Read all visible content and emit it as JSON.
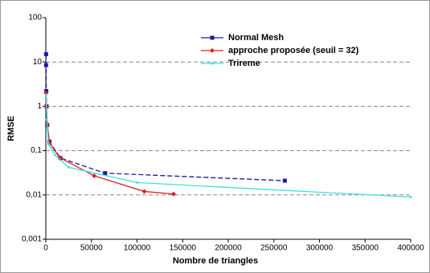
{
  "chart_data": {
    "type": "line",
    "xlabel": "Nombre de triangles",
    "ylabel": "RMSE",
    "xlim": [
      0,
      400000
    ],
    "xticks": [
      0,
      50000,
      100000,
      150000,
      200000,
      250000,
      300000,
      350000,
      400000
    ],
    "ylim": [
      0.001,
      100
    ],
    "log_y": true,
    "yticks": [
      {
        "value": 0.001,
        "label": "0,001"
      },
      {
        "value": 0.01,
        "label": "0,01"
      },
      {
        "value": 0.1,
        "label": "0,1"
      },
      1,
      10,
      100
    ],
    "grid": true,
    "legend": "top-right",
    "series": [
      {
        "name": "Normal Mesh",
        "color": "#1a1aa6",
        "dashed": true,
        "marker": "square",
        "x": [
          300,
          300,
          500,
          800,
          1500,
          4000,
          16000,
          65000,
          262000
        ],
        "values": [
          15,
          8.5,
          2.2,
          1.0,
          0.38,
          0.16,
          0.068,
          0.031,
          0.021
        ]
      },
      {
        "name": "approche proposée (seuil = 32)",
        "color": "#e02020",
        "dashed": false,
        "marker": "diamond",
        "x": [
          300,
          800,
          1500,
          4000,
          15000,
          53000,
          108000,
          140000
        ],
        "values": [
          2.0,
          1.0,
          0.4,
          0.15,
          0.07,
          0.027,
          0.012,
          0.0105
        ]
      },
      {
        "name": "Trireme",
        "color": "#40e0e0",
        "dashed": false,
        "marker": "dot",
        "x": [
          300,
          1000,
          3000,
          10000,
          25000,
          100000,
          400000
        ],
        "values": [
          1.8,
          0.5,
          0.14,
          0.08,
          0.042,
          0.019,
          0.009
        ]
      }
    ]
  }
}
